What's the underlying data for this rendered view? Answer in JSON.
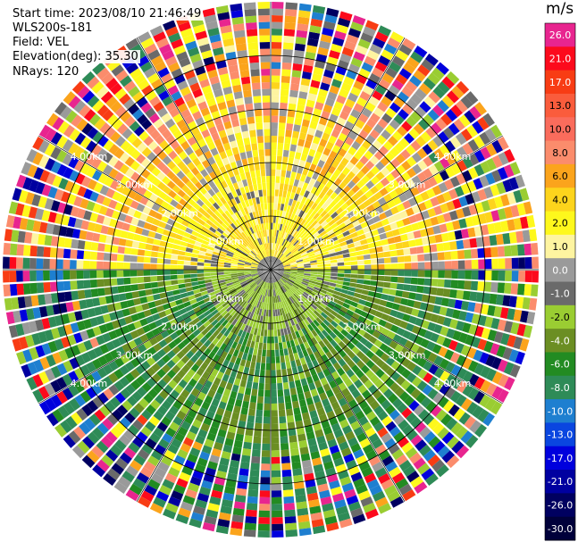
{
  "meta": {
    "start_time": "Start time: 2023/08/10 21:46:49",
    "instrument": "WLS200s-181",
    "field": "Field: VEL",
    "elevation": "Elevation(deg): 35.30",
    "nrays": "NRays: 120"
  },
  "chart_data": {
    "type": "ppi",
    "field": "VEL",
    "units": "m/s",
    "n_rays": 120,
    "range_rings": [
      {
        "range_km": 1.0,
        "label": "1.00km"
      },
      {
        "range_km": 2.0,
        "label": "2.00km"
      },
      {
        "range_km": 3.0,
        "label": "3.00km"
      },
      {
        "range_km": 4.0,
        "label": "4.00km"
      }
    ],
    "max_range_km": 5.0,
    "azimuth_lines_deg": [
      0,
      30,
      60,
      90,
      120,
      150,
      180,
      210,
      240,
      270,
      300,
      330
    ],
    "colorbar": {
      "title": "m/s",
      "bins": [
        {
          "label": "26.0",
          "color": "#e8258f"
        },
        {
          "label": "21.0",
          "color": "#fc0a1c"
        },
        {
          "label": "17.0",
          "color": "#f83c14"
        },
        {
          "label": "13.0",
          "color": "#fa5c3c"
        },
        {
          "label": "10.0",
          "color": "#fa6c5c"
        },
        {
          "label": "8.0",
          "color": "#fb8c6c"
        },
        {
          "label": "6.0",
          "color": "#fba41c"
        },
        {
          "label": "4.0",
          "color": "#fdd41c"
        },
        {
          "label": "2.0",
          "color": "#fef81c"
        },
        {
          "label": "1.0",
          "color": "#fef4a0"
        },
        {
          "label": "0.0",
          "color": "#9a9a9a"
        },
        {
          "label": "-1.0",
          "color": "#6a6a6a"
        },
        {
          "label": "-2.0",
          "color": "#9acd32"
        },
        {
          "label": "-4.0",
          "color": "#6b8e23"
        },
        {
          "label": "-6.0",
          "color": "#228b22"
        },
        {
          "label": "-8.0",
          "color": "#2e8b57"
        },
        {
          "label": "-10.0",
          "color": "#1e7fd0"
        },
        {
          "label": "-13.0",
          "color": "#0a46e0"
        },
        {
          "label": "-17.0",
          "color": "#0000dd"
        },
        {
          "label": "-21.0",
          "color": "#0000a0"
        },
        {
          "label": "-26.0",
          "color": "#000060"
        },
        {
          "label": "-30.0",
          "color": "#00003a"
        }
      ]
    }
  },
  "colors": {
    "ring_line": "#000000",
    "background": "#ffffff"
  }
}
